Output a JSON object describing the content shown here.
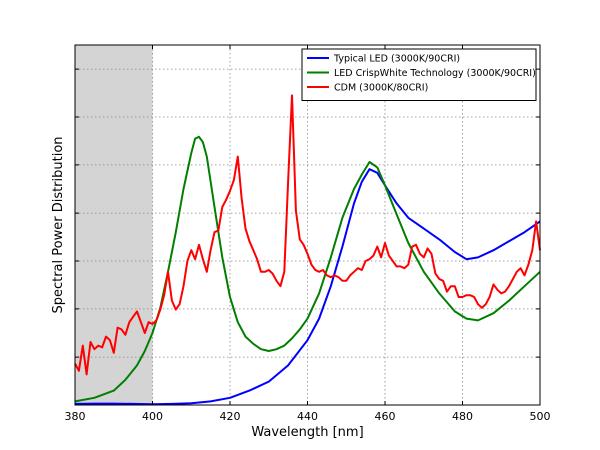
{
  "chart_data": {
    "type": "line",
    "title": "",
    "xlabel": "Wavelength [nm]",
    "ylabel": "Spectral Power Distribution",
    "xlim": [
      380,
      500
    ],
    "ylim": [
      0,
      1.0
    ],
    "x_ticks": [
      380,
      400,
      420,
      440,
      460,
      480,
      500
    ],
    "x_tick_labels": [
      "380",
      "400",
      "420",
      "440",
      "460",
      "480",
      "500"
    ],
    "y_gridlines": [
      0.133,
      0.267,
      0.4,
      0.533,
      0.667,
      0.8,
      0.933
    ],
    "y_tick_labels_shown": false,
    "grid": true,
    "legend_position": "top-right",
    "shaded_region": {
      "x_start": 380,
      "x_end": 400,
      "color": "#d4d4d4"
    },
    "series": [
      {
        "name": "Typical LED (3000K/90CRI)",
        "color": "#0000ff",
        "x": [
          380,
          385,
          390,
          395,
          400,
          405,
          410,
          415,
          420,
          425,
          430,
          435,
          440,
          443,
          446,
          449,
          452,
          454,
          456,
          458,
          460,
          463,
          466,
          470,
          474,
          478,
          481,
          484,
          488,
          492,
          496,
          500
        ],
        "y": [
          0.003,
          0.004,
          0.004,
          0.003,
          0.002,
          0.003,
          0.005,
          0.01,
          0.02,
          0.04,
          0.065,
          0.11,
          0.18,
          0.24,
          0.33,
          0.44,
          0.56,
          0.62,
          0.655,
          0.645,
          0.61,
          0.56,
          0.52,
          0.49,
          0.46,
          0.425,
          0.405,
          0.41,
          0.43,
          0.455,
          0.48,
          0.51
        ]
      },
      {
        "name": "LED CrispWhite Technology (3000K/90CRI)",
        "color": "#007f00",
        "x": [
          380,
          385,
          390,
          393,
          396,
          398,
          400,
          402,
          404,
          406,
          408,
          410,
          411,
          412,
          413,
          414,
          416,
          418,
          420,
          422,
          424,
          426,
          428,
          430,
          432,
          434,
          436,
          438,
          440,
          443,
          446,
          449,
          452,
          454,
          456,
          458,
          460,
          463,
          466,
          470,
          474,
          478,
          481,
          484,
          488,
          492,
          496,
          500
        ],
        "y": [
          0.01,
          0.02,
          0.04,
          0.07,
          0.11,
          0.15,
          0.2,
          0.27,
          0.37,
          0.48,
          0.6,
          0.7,
          0.74,
          0.745,
          0.73,
          0.69,
          0.55,
          0.41,
          0.3,
          0.23,
          0.19,
          0.17,
          0.155,
          0.15,
          0.155,
          0.165,
          0.185,
          0.21,
          0.24,
          0.31,
          0.41,
          0.52,
          0.6,
          0.64,
          0.675,
          0.66,
          0.61,
          0.53,
          0.45,
          0.37,
          0.31,
          0.26,
          0.24,
          0.235,
          0.255,
          0.29,
          0.33,
          0.37
        ]
      },
      {
        "name": "CDM (3000K/80CRI)",
        "color": "#ff0000",
        "x": [
          380,
          381,
          382,
          383,
          384,
          385,
          386,
          387,
          388,
          389,
          390,
          391,
          392,
          393,
          394,
          395,
          396,
          397,
          398,
          399,
          400,
          401,
          402,
          403,
          404,
          405,
          406,
          407,
          408,
          409,
          410,
          411,
          412,
          413,
          414,
          415,
          416,
          417,
          418,
          419,
          420,
          421,
          422,
          423,
          424,
          425,
          426,
          427,
          428,
          429,
          430,
          431,
          432,
          433,
          434,
          435,
          436,
          437,
          438,
          439,
          440,
          441,
          442,
          443,
          444,
          445,
          446,
          447,
          448,
          449,
          450,
          451,
          452,
          453,
          454,
          455,
          456,
          457,
          458,
          459,
          460,
          461,
          462,
          463,
          464,
          465,
          466,
          467,
          468,
          469,
          470,
          471,
          472,
          473,
          474,
          475,
          476,
          477,
          478,
          479,
          480,
          481,
          482,
          483,
          484,
          485,
          486,
          487,
          488,
          489,
          490,
          491,
          492,
          493,
          494,
          495,
          496,
          497,
          498,
          499,
          500
        ],
        "y": [
          0.115,
          0.095,
          0.165,
          0.085,
          0.175,
          0.155,
          0.165,
          0.16,
          0.19,
          0.18,
          0.145,
          0.215,
          0.21,
          0.195,
          0.23,
          0.245,
          0.26,
          0.23,
          0.2,
          0.23,
          0.225,
          0.235,
          0.265,
          0.305,
          0.37,
          0.29,
          0.265,
          0.28,
          0.33,
          0.4,
          0.43,
          0.405,
          0.445,
          0.405,
          0.37,
          0.43,
          0.48,
          0.485,
          0.55,
          0.57,
          0.595,
          0.625,
          0.69,
          0.575,
          0.49,
          0.455,
          0.43,
          0.405,
          0.37,
          0.37,
          0.375,
          0.365,
          0.345,
          0.33,
          0.37,
          0.62,
          0.86,
          0.54,
          0.46,
          0.445,
          0.42,
          0.39,
          0.375,
          0.37,
          0.375,
          0.36,
          0.355,
          0.36,
          0.355,
          0.345,
          0.345,
          0.36,
          0.37,
          0.38,
          0.375,
          0.4,
          0.405,
          0.415,
          0.44,
          0.41,
          0.45,
          0.415,
          0.4,
          0.385,
          0.385,
          0.38,
          0.39,
          0.44,
          0.445,
          0.42,
          0.41,
          0.435,
          0.42,
          0.365,
          0.35,
          0.345,
          0.315,
          0.33,
          0.33,
          0.3,
          0.3,
          0.305,
          0.305,
          0.3,
          0.28,
          0.27,
          0.28,
          0.3,
          0.335,
          0.32,
          0.31,
          0.315,
          0.33,
          0.35,
          0.37,
          0.38,
          0.36,
          0.39,
          0.43,
          0.51,
          0.43
        ]
      }
    ]
  }
}
